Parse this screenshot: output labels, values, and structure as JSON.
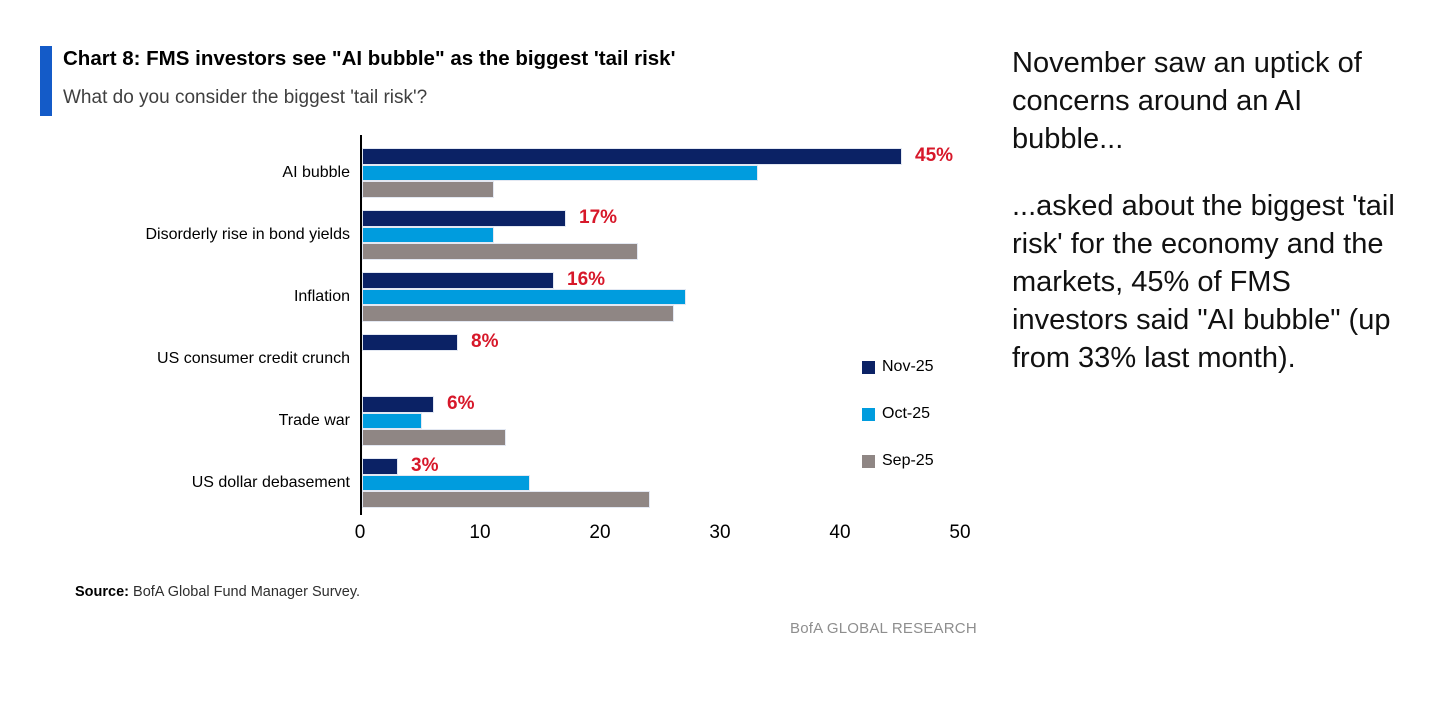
{
  "header": {
    "title": "Chart 8: FMS investors see \"AI bubble\" as the biggest 'tail risk'",
    "subtitle": "What do you consider the biggest 'tail risk'?"
  },
  "chart_data": {
    "type": "bar",
    "orientation": "horizontal",
    "title": "Chart 8: FMS investors see \"AI bubble\" as the biggest 'tail risk'",
    "subtitle": "What do you consider the biggest 'tail risk'?",
    "categories": [
      "AI bubble",
      "Disorderly rise in bond yields",
      "Inflation",
      "US consumer credit crunch",
      "Trade war",
      "US dollar debasement"
    ],
    "series": [
      {
        "name": "Nov-25",
        "color": "#0b2265",
        "values": [
          45,
          17,
          16,
          8,
          6,
          3
        ]
      },
      {
        "name": "Oct-25",
        "color": "#009cde",
        "values": [
          33,
          11,
          27,
          0,
          5,
          14
        ]
      },
      {
        "name": "Sep-25",
        "color": "#8f8684",
        "values": [
          11,
          23,
          26,
          0,
          12,
          24
        ]
      }
    ],
    "data_labels": {
      "series": "Nov-25",
      "values": [
        "45%",
        "17%",
        "16%",
        "8%",
        "6%",
        "3%"
      ],
      "color": "#d7182a"
    },
    "xlim": [
      0,
      50
    ],
    "x_ticks": [
      "0",
      "10",
      "20",
      "30",
      "40",
      "50"
    ],
    "grid": false,
    "legend_position": "right-middle"
  },
  "source": {
    "label": "Source:",
    "text": "BofA Global Fund Manager Survey."
  },
  "branding": "BofA GLOBAL RESEARCH",
  "commentary": {
    "para1": "November saw an uptick of concerns around an AI bubble...",
    "para2": "...asked about the biggest 'tail risk' for the economy and the markets, 45% of FMS investors said \"AI bubble\" (up from 33% last month)."
  },
  "colors": {
    "accent_bar": "#145bc8",
    "navy": "#0b2265",
    "light_blue": "#009cde",
    "gray": "#8f8684",
    "red": "#d7182a"
  }
}
